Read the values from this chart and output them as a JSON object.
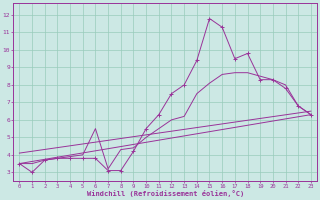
{
  "xlabel": "Windchill (Refroidissement éolien,°C)",
  "background_color": "#cce8e4",
  "line_color": "#993399",
  "grid_color": "#99ccbb",
  "xlim": [
    -0.5,
    23.5
  ],
  "ylim": [
    2.5,
    12.7
  ],
  "xticks": [
    0,
    1,
    2,
    3,
    4,
    5,
    6,
    7,
    8,
    9,
    10,
    11,
    12,
    13,
    14,
    15,
    16,
    17,
    18,
    19,
    20,
    21,
    22,
    23
  ],
  "yticks": [
    3,
    4,
    5,
    6,
    7,
    8,
    9,
    10,
    11,
    12
  ],
  "line1_x": [
    0,
    1,
    2,
    3,
    4,
    5,
    6,
    7,
    8,
    9,
    10,
    11,
    12,
    13,
    14,
    15,
    16,
    17,
    18,
    19,
    20,
    21,
    22,
    23
  ],
  "line1_y": [
    3.5,
    3.0,
    3.7,
    3.8,
    3.8,
    3.8,
    3.8,
    3.1,
    3.1,
    4.2,
    5.5,
    6.3,
    7.5,
    8.0,
    9.4,
    11.8,
    11.3,
    9.5,
    9.8,
    8.3,
    8.3,
    7.8,
    6.8,
    6.3
  ],
  "line2_x": [
    0,
    1,
    2,
    3,
    4,
    5,
    6,
    7,
    8,
    9,
    10,
    11,
    12,
    13,
    14,
    15,
    16,
    17,
    18,
    19,
    20,
    21,
    22,
    23
  ],
  "line2_y": [
    3.5,
    3.5,
    3.7,
    3.8,
    3.9,
    4.0,
    5.5,
    3.2,
    4.3,
    4.4,
    5.0,
    5.5,
    6.0,
    6.2,
    7.5,
    8.1,
    8.6,
    8.7,
    8.7,
    8.5,
    8.3,
    8.0,
    6.8,
    6.3
  ],
  "line3_x": [
    0,
    23
  ],
  "line3_y": [
    3.5,
    6.3
  ],
  "line4_x": [
    0,
    23
  ],
  "line4_y": [
    4.1,
    6.5
  ]
}
